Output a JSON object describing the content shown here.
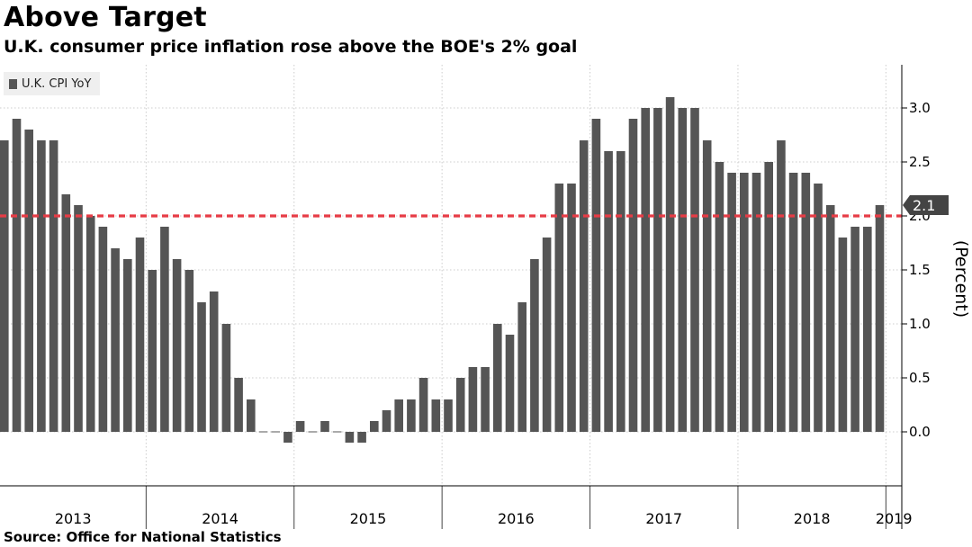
{
  "title": "Above Target",
  "subtitle": "U.K. consumer price inflation rose above the BOE's 2% goal",
  "source": "Source: Office for National Statistics",
  "colors": {
    "bar": "#555555",
    "target_line": "#e63c46",
    "grid": "#cccccc",
    "callout": "#444444"
  },
  "chart_data": {
    "type": "bar",
    "title": "Above Target",
    "ylabel": "(Percent)",
    "ylim": [
      -0.5,
      3.4
    ],
    "yticks": [
      0.0,
      0.5,
      1.0,
      1.5,
      2.0,
      2.5,
      3.0
    ],
    "ytick_labels": [
      "0.0",
      "0.5",
      "1.0",
      "1.5",
      "2.0",
      "2.5",
      "3.0"
    ],
    "grid": true,
    "legend_position": "top-left",
    "target_line": 2.0,
    "last_value_label": "2.1",
    "x_year_labels": [
      "2013",
      "2014",
      "2015",
      "2016",
      "2017",
      "2018",
      "2019"
    ],
    "series": [
      {
        "name": "U.K. CPI YoY",
        "start": "2013-01",
        "values": [
          2.7,
          2.9,
          2.8,
          2.7,
          2.7,
          2.2,
          2.1,
          2.0,
          1.9,
          1.7,
          1.6,
          1.8,
          1.5,
          1.9,
          1.6,
          1.5,
          1.2,
          1.3,
          1.0,
          0.5,
          0.3,
          0.0,
          0.0,
          -0.1,
          0.1,
          0.0,
          0.1,
          0.0,
          -0.1,
          -0.1,
          0.1,
          0.2,
          0.3,
          0.3,
          0.5,
          0.3,
          0.3,
          0.5,
          0.6,
          0.6,
          1.0,
          0.9,
          1.2,
          1.6,
          1.8,
          2.3,
          2.3,
          2.7,
          2.9,
          2.6,
          2.6,
          2.9,
          3.0,
          3.0,
          3.1,
          3.0,
          3.0,
          2.7,
          2.5,
          2.4,
          2.4,
          2.4,
          2.5,
          2.7,
          2.4,
          2.4,
          2.3,
          2.1,
          1.8,
          1.9,
          1.9,
          2.1
        ]
      }
    ]
  }
}
